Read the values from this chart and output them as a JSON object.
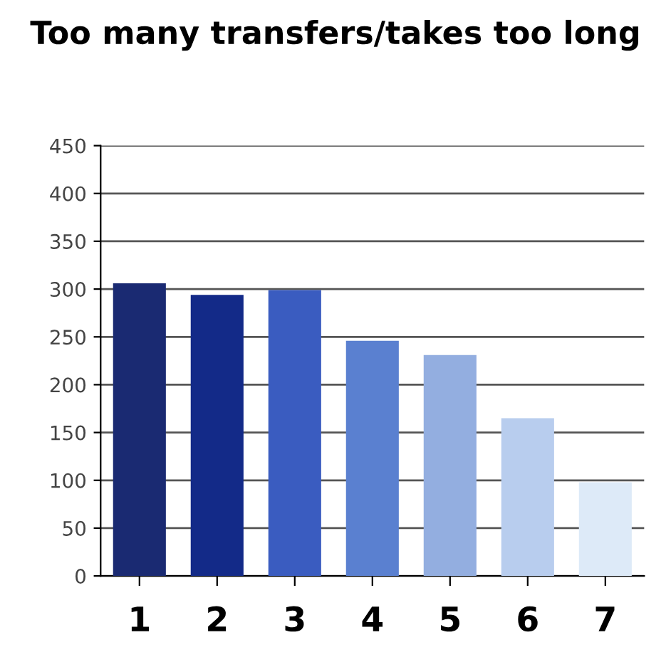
{
  "chart_data": {
    "type": "bar",
    "title": "Too many transfers/takes too long",
    "categories": [
      "1",
      "2",
      "3",
      "4",
      "5",
      "6",
      "7"
    ],
    "values": [
      306,
      294,
      299,
      246,
      231,
      165,
      98
    ],
    "colors": [
      "#1a2a72",
      "#132a88",
      "#3a5cc0",
      "#5a80d0",
      "#93aee0",
      "#b8cdee",
      "#ddeaf8"
    ],
    "ylim": [
      0,
      450
    ],
    "yticks": [
      0,
      50,
      100,
      150,
      200,
      250,
      300,
      350,
      400,
      450
    ],
    "grid": "y",
    "legend": false
  }
}
